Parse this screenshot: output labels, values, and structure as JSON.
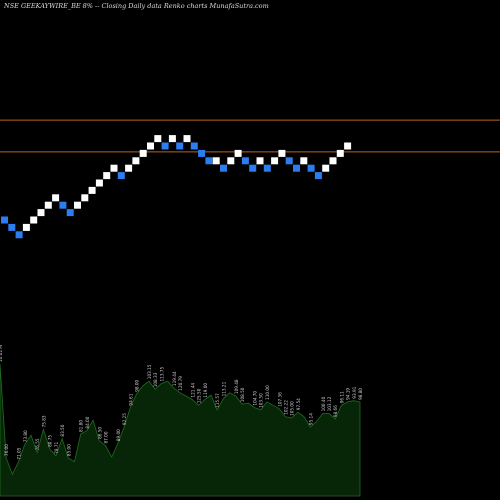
{
  "chart_data": {
    "type": "renko",
    "title": "NSE GEEKAYWIRE_BE 8% -- Closing Daily data Renko charts MunafaSutra.com",
    "colors": {
      "background": "#000000",
      "up_brick": "#ffffff",
      "down_brick": "#2b7df0",
      "level_line": "#b8651a",
      "volume_fill": "#072607",
      "volume_edge": "#1f6b1f",
      "label": "#d0d0d0"
    },
    "bricks": [
      {
        "c": 0,
        "l": 0,
        "d": "down"
      },
      {
        "c": 1,
        "l": -1,
        "d": "down"
      },
      {
        "c": 2,
        "l": -2,
        "d": "down"
      },
      {
        "c": 3,
        "l": -1,
        "d": "up"
      },
      {
        "c": 4,
        "l": 0,
        "d": "up"
      },
      {
        "c": 5,
        "l": 1,
        "d": "up"
      },
      {
        "c": 6,
        "l": 2,
        "d": "up"
      },
      {
        "c": 7,
        "l": 3,
        "d": "up"
      },
      {
        "c": 8,
        "l": 2,
        "d": "down"
      },
      {
        "c": 9,
        "l": 1,
        "d": "down"
      },
      {
        "c": 10,
        "l": 2,
        "d": "up"
      },
      {
        "c": 11,
        "l": 3,
        "d": "up"
      },
      {
        "c": 12,
        "l": 4,
        "d": "up"
      },
      {
        "c": 13,
        "l": 5,
        "d": "up"
      },
      {
        "c": 14,
        "l": 6,
        "d": "up"
      },
      {
        "c": 15,
        "l": 7,
        "d": "up"
      },
      {
        "c": 16,
        "l": 6,
        "d": "down"
      },
      {
        "c": 17,
        "l": 7,
        "d": "up"
      },
      {
        "c": 18,
        "l": 8,
        "d": "up"
      },
      {
        "c": 19,
        "l": 9,
        "d": "up"
      },
      {
        "c": 20,
        "l": 10,
        "d": "up"
      },
      {
        "c": 21,
        "l": 11,
        "d": "up"
      },
      {
        "c": 22,
        "l": 10,
        "d": "down"
      },
      {
        "c": 23,
        "l": 11,
        "d": "up"
      },
      {
        "c": 24,
        "l": 10,
        "d": "down"
      },
      {
        "c": 25,
        "l": 11,
        "d": "up"
      },
      {
        "c": 26,
        "l": 10,
        "d": "down"
      },
      {
        "c": 27,
        "l": 9,
        "d": "down"
      },
      {
        "c": 28,
        "l": 8,
        "d": "down"
      },
      {
        "c": 29,
        "l": 8,
        "d": "up"
      },
      {
        "c": 30,
        "l": 7,
        "d": "down"
      },
      {
        "c": 31,
        "l": 8,
        "d": "up"
      },
      {
        "c": 32,
        "l": 9,
        "d": "up"
      },
      {
        "c": 33,
        "l": 8,
        "d": "down"
      },
      {
        "c": 34,
        "l": 7,
        "d": "down"
      },
      {
        "c": 35,
        "l": 8,
        "d": "up"
      },
      {
        "c": 36,
        "l": 7,
        "d": "down"
      },
      {
        "c": 37,
        "l": 8,
        "d": "up"
      },
      {
        "c": 38,
        "l": 9,
        "d": "up"
      },
      {
        "c": 39,
        "l": 8,
        "d": "down"
      },
      {
        "c": 40,
        "l": 7,
        "d": "down"
      },
      {
        "c": 41,
        "l": 8,
        "d": "up"
      },
      {
        "c": 42,
        "l": 7,
        "d": "down"
      },
      {
        "c": 43,
        "l": 6,
        "d": "down"
      },
      {
        "c": 44,
        "l": 7,
        "d": "up"
      },
      {
        "c": 45,
        "l": 8,
        "d": "up"
      },
      {
        "c": 46,
        "l": 9,
        "d": "up"
      },
      {
        "c": 47,
        "l": 10,
        "d": "up"
      }
    ],
    "level_lines": [
      13.5,
      9.2
    ],
    "volume": [
      11.5,
      3.3,
      1.9,
      3.0,
      4.5,
      5.3,
      3.8,
      5.8,
      4.1,
      3.5,
      5.0,
      3.3,
      3.0,
      5.4,
      5.7,
      6.6,
      4.8,
      4.4,
      3.4,
      4.6,
      6.0,
      7.7,
      8.9,
      9.6,
      10.0,
      9.3,
      9.8,
      10.0,
      9.4,
      9.0,
      8.7,
      8.4,
      7.9,
      8.4,
      8.8,
      7.5,
      8.5,
      9.0,
      8.7,
      8.0,
      8.1,
      7.7,
      7.5,
      8.2,
      7.9,
      7.6,
      6.9,
      6.8,
      7.3,
      6.9,
      6.0,
      6.5,
      7.2,
      7.2,
      6.7,
      7.9,
      8.2,
      8.3,
      8.2
    ],
    "volume_labels": [
      {
        "i": 0,
        "t": "10.02 M"
      },
      {
        "i": 1,
        "t": "76.00"
      },
      {
        "i": 3,
        "t": "71.05"
      },
      {
        "i": 4,
        "t": "73.80"
      },
      {
        "i": 6,
        "t": "76.55"
      },
      {
        "i": 7,
        "t": "75.83"
      },
      {
        "i": 8,
        "t": "80.75"
      },
      {
        "i": 9,
        "t": "78.71"
      },
      {
        "i": 10,
        "t": "83.50"
      },
      {
        "i": 11,
        "t": "85.00"
      },
      {
        "i": 13,
        "t": "81.80"
      },
      {
        "i": 14,
        "t": "84.00"
      },
      {
        "i": 16,
        "t": "86.50"
      },
      {
        "i": 17,
        "t": "87.00"
      },
      {
        "i": 19,
        "t": "89.00"
      },
      {
        "i": 20,
        "t": "92.25"
      },
      {
        "i": 21,
        "t": "94.61"
      },
      {
        "i": 22,
        "t": "98.00"
      },
      {
        "i": 24,
        "t": "103.15"
      },
      {
        "i": 25,
        "t": "108.33"
      },
      {
        "i": 26,
        "t": "113.75"
      },
      {
        "i": 28,
        "t": "119.44"
      },
      {
        "i": 29,
        "t": "120.79"
      },
      {
        "i": 31,
        "t": "121.44"
      },
      {
        "i": 32,
        "t": "125.50"
      },
      {
        "i": 33,
        "t": "119.00"
      },
      {
        "i": 35,
        "t": "115.57"
      },
      {
        "i": 36,
        "t": "113.21"
      },
      {
        "i": 38,
        "t": "109.48"
      },
      {
        "i": 39,
        "t": "108.50"
      },
      {
        "i": 41,
        "t": "104.70"
      },
      {
        "i": 42,
        "t": "103.50"
      },
      {
        "i": 43,
        "t": "110.00"
      },
      {
        "i": 45,
        "t": "107.36"
      },
      {
        "i": 46,
        "t": "102.22"
      },
      {
        "i": 47,
        "t": "105.00"
      },
      {
        "i": 48,
        "t": "97.54"
      },
      {
        "i": 50,
        "t": "95.14"
      },
      {
        "i": 52,
        "t": "100.40"
      },
      {
        "i": 53,
        "t": "103.12"
      },
      {
        "i": 54,
        "t": "98.66"
      },
      {
        "i": 55,
        "t": "96.11"
      },
      {
        "i": 56,
        "t": "94.19"
      },
      {
        "i": 57,
        "t": "93.91"
      },
      {
        "i": 58,
        "t": "98.80"
      }
    ]
  }
}
